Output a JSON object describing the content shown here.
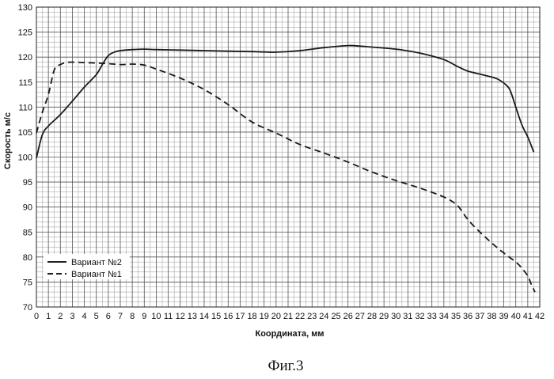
{
  "caption": "Фиг.3",
  "chart_data": {
    "type": "line",
    "xlabel": "Координата, мм",
    "ylabel": "Скорость м/с",
    "xlim": [
      0,
      42
    ],
    "ylim": [
      70,
      130
    ],
    "x_ticks": [
      "0",
      "1",
      "2",
      "3",
      "4",
      "5",
      "6",
      "7",
      "8",
      "9",
      "10",
      "11",
      "12",
      "13",
      "14",
      "15",
      "16",
      "17",
      "18",
      "19",
      "20",
      "21",
      "22",
      "23",
      "24",
      "25",
      "26",
      "27",
      "28",
      "29",
      "30",
      "31",
      "32",
      "33",
      "34",
      "35",
      "36",
      "37",
      "38",
      "39",
      "40",
      "41",
      "42"
    ],
    "y_ticks": [
      "70",
      "75",
      "80",
      "85",
      "90",
      "95",
      "100",
      "105",
      "110",
      "115",
      "120",
      "125",
      "130"
    ],
    "grid": true,
    "legend_position": "bottom-left",
    "series": [
      {
        "name": "Вариант №2",
        "style": "solid",
        "x": [
          0,
          0.5,
          1,
          2,
          3,
          4,
          5,
          5.5,
          6,
          6.5,
          7,
          8,
          9,
          10,
          12,
          14,
          16,
          18,
          20,
          22,
          24,
          26,
          27,
          28,
          30,
          32,
          34,
          35,
          36,
          37,
          38,
          38.5,
          39,
          39.5,
          40,
          40.5,
          41,
          41.5
        ],
        "y": [
          99.8,
          104.5,
          106.2,
          108.5,
          111.2,
          114.0,
          116.5,
          118.5,
          120.3,
          121.0,
          121.3,
          121.5,
          121.6,
          121.5,
          121.4,
          121.3,
          121.2,
          121.1,
          121.0,
          121.3,
          121.9,
          122.3,
          122.2,
          122.0,
          121.6,
          120.8,
          119.5,
          118.3,
          117.2,
          116.6,
          116.0,
          115.6,
          114.8,
          113.5,
          110.0,
          106.5,
          104.0,
          101.0
        ]
      },
      {
        "name": "Вариант №1",
        "style": "dashed",
        "x": [
          0,
          0.5,
          1,
          1.5,
          2,
          2.5,
          3,
          4,
          5,
          6,
          7,
          8,
          9,
          10,
          12,
          14,
          16,
          18,
          20,
          22,
          24,
          26,
          28,
          30,
          32,
          34,
          35,
          35.5,
          36,
          37,
          38,
          39,
          40,
          40.5,
          41,
          41.3,
          41.6
        ],
        "y": [
          104.8,
          109.0,
          112.5,
          117.5,
          118.5,
          118.9,
          119.0,
          118.9,
          118.8,
          118.7,
          118.5,
          118.6,
          118.4,
          117.6,
          115.8,
          113.5,
          110.5,
          107.0,
          104.8,
          102.5,
          100.8,
          99.0,
          97.0,
          95.3,
          93.8,
          92.0,
          90.6,
          89.2,
          87.5,
          85.0,
          82.8,
          80.8,
          79.0,
          77.8,
          76.2,
          74.5,
          73.0
        ]
      }
    ]
  }
}
